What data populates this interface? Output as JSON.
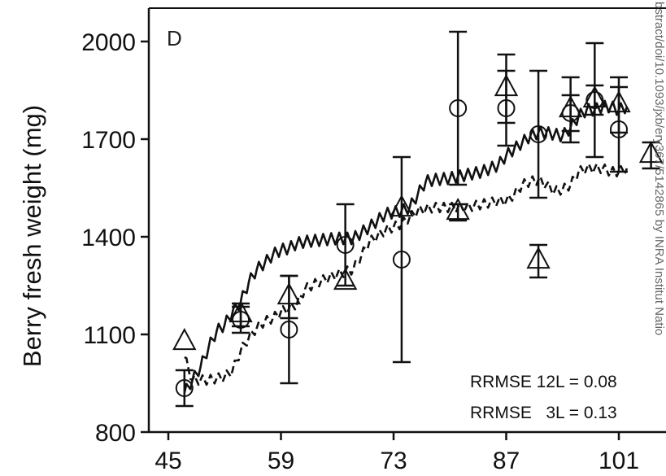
{
  "chart_data": {
    "type": "scatter",
    "panel_label": "D",
    "ylabel": "Berry fresh weight (mg)",
    "xlim": [
      45,
      103
    ],
    "ylim": [
      800,
      2100
    ],
    "x_ticks": [
      45,
      59,
      73,
      87,
      101
    ],
    "y_ticks": [
      800,
      1100,
      1400,
      1700,
      2000
    ],
    "grid": false,
    "annotations": [
      "RRMSE 12L = 0.08",
      "RRMSE   3L = 0.13"
    ],
    "watermark": "bstract/doi/10.1093/jxb/ery367/5142865 by INRA Institut Natio",
    "series": [
      {
        "marker": "circle",
        "points": [
          {
            "x": 47,
            "y": 935,
            "err": 55
          },
          {
            "x": 54,
            "y": 1145,
            "err": 40
          },
          {
            "x": 60,
            "y": 1115,
            "err": 165
          },
          {
            "x": 67,
            "y": 1375,
            "err": 125
          },
          {
            "x": 74,
            "y": 1330,
            "err": 315
          },
          {
            "x": 81,
            "y": 1795,
            "err": 235
          },
          {
            "x": 87,
            "y": 1795,
            "err": 115
          },
          {
            "x": 91,
            "y": 1715,
            "err": 195
          },
          {
            "x": 95,
            "y": 1780,
            "err": 55
          },
          {
            "x": 98,
            "y": 1820,
            "err": 175
          },
          {
            "x": 101,
            "y": 1730,
            "err": 130
          }
        ]
      },
      {
        "marker": "triangle",
        "points": [
          {
            "x": 47,
            "y": 1075,
            "err": 0
          },
          {
            "x": 54,
            "y": 1160,
            "err": 35
          },
          {
            "x": 60,
            "y": 1215,
            "err": 65
          },
          {
            "x": 67,
            "y": 1260,
            "err": 0
          },
          {
            "x": 74,
            "y": 1485,
            "err": 0
          },
          {
            "x": 81,
            "y": 1475,
            "err": 25
          },
          {
            "x": 87,
            "y": 1855,
            "err": 105
          },
          {
            "x": 91,
            "y": 1325,
            "err": 50
          },
          {
            "x": 95,
            "y": 1790,
            "err": 100
          },
          {
            "x": 98,
            "y": 1820,
            "err": 45
          },
          {
            "x": 101,
            "y": 1805,
            "err": 85
          },
          {
            "x": 105,
            "y": 1650,
            "err": 40
          }
        ]
      },
      {
        "style": "solid",
        "x": [
          47,
          48,
          49,
          50,
          51,
          52,
          53,
          54,
          55,
          56,
          57,
          58,
          59,
          60,
          61,
          62,
          64,
          66,
          68,
          70,
          72,
          74,
          75,
          76,
          77,
          78,
          80,
          82,
          84,
          86,
          87,
          88,
          89,
          90,
          91,
          92,
          93,
          94,
          95,
          96,
          97,
          98,
          99,
          100,
          101,
          102
        ],
        "y": [
          920,
          960,
          1000,
          1060,
          1110,
          1130,
          1170,
          1200,
          1260,
          1300,
          1320,
          1345,
          1360,
          1365,
          1380,
          1385,
          1390,
          1395,
          1395,
          1430,
          1470,
          1480,
          1490,
          1530,
          1570,
          1575,
          1580,
          1590,
          1600,
          1620,
          1650,
          1670,
          1690,
          1710,
          1720,
          1720,
          1715,
          1710,
          1735,
          1770,
          1790,
          1790,
          1800,
          1800,
          1790,
          1800
        ]
      },
      {
        "style": "dashed",
        "x": [
          47,
          48,
          50,
          52,
          53,
          54,
          55,
          56,
          57,
          58,
          59,
          60,
          61,
          62,
          64,
          66,
          68,
          70,
          72,
          74,
          75,
          76,
          78,
          80,
          82,
          84,
          86,
          87,
          88,
          89,
          90,
          91,
          92,
          93,
          94,
          95,
          96,
          97,
          98,
          99,
          100,
          101,
          102
        ],
        "y": [
          1030,
          960,
          960,
          970,
          990,
          1050,
          1090,
          1120,
          1140,
          1150,
          1170,
          1180,
          1195,
          1240,
          1265,
          1285,
          1300,
          1385,
          1420,
          1440,
          1460,
          1480,
          1490,
          1490,
          1490,
          1500,
          1510,
          1510,
          1530,
          1560,
          1570,
          1575,
          1560,
          1540,
          1545,
          1560,
          1600,
          1610,
          1610,
          1610,
          1600,
          1600,
          1610
        ]
      }
    ]
  }
}
